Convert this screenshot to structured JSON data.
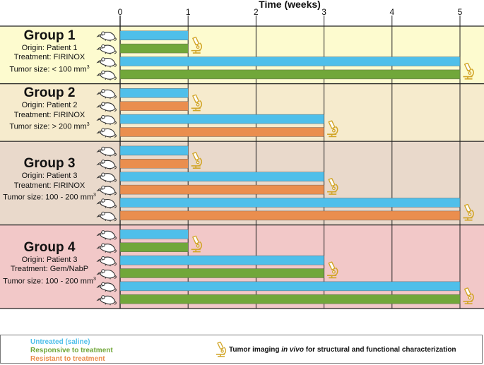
{
  "title": "Time (weeks)",
  "colors": {
    "untreated": "#4fbfea",
    "responsive": "#71a73a",
    "resistant": "#ea8e4e",
    "scope": "#d2a629"
  },
  "chart_data": {
    "type": "gantt",
    "xlabel": "Time (weeks)",
    "x_ticks": [
      "0",
      "1",
      "2",
      "3",
      "4",
      "5"
    ],
    "xlim": [
      0,
      5.4
    ],
    "groups": [
      {
        "title": "Group 1",
        "origin": "Origin: Patient 1",
        "treatment": "Treatment: FIRINOX",
        "tumor_size": "Tumor size: < 100 mm",
        "tumor_size_unit_exp": "3",
        "bg": "#fdfbcf",
        "bars": [
          {
            "status": "untreated",
            "end": 1
          },
          {
            "status": "responsive",
            "end": 1
          },
          {
            "status": "untreated",
            "end": 5
          },
          {
            "status": "responsive",
            "end": 5
          }
        ]
      },
      {
        "title": "Group 2",
        "origin": "Origin: Patient 2",
        "treatment": "Treatment: FIRINOX",
        "tumor_size": "Tumor size: > 200 mm",
        "tumor_size_unit_exp": "3",
        "bg": "#f6ebcd",
        "bars": [
          {
            "status": "untreated",
            "end": 1
          },
          {
            "status": "resistant",
            "end": 1
          },
          {
            "status": "untreated",
            "end": 3
          },
          {
            "status": "resistant",
            "end": 3
          }
        ]
      },
      {
        "title": "Group 3",
        "origin": "Origin: Patient 3",
        "treatment": "Treatment: FIRINOX",
        "tumor_size": "Tumor size: 100 - 200 mm",
        "tumor_size_unit_exp": "3",
        "bg": "#e9d9cb",
        "bars": [
          {
            "status": "untreated",
            "end": 1
          },
          {
            "status": "resistant",
            "end": 1
          },
          {
            "status": "untreated",
            "end": 3
          },
          {
            "status": "resistant",
            "end": 3
          },
          {
            "status": "untreated",
            "end": 5
          },
          {
            "status": "resistant",
            "end": 5
          }
        ]
      },
      {
        "title": "Group 4",
        "origin": "Origin: Patient 3",
        "treatment": "Treatment: Gem/NabP",
        "tumor_size": "Tumor size: 100 - 200 mm",
        "tumor_size_unit_exp": "3",
        "bg": "#f2c8c8",
        "bars": [
          {
            "status": "untreated",
            "end": 1
          },
          {
            "status": "responsive",
            "end": 1
          },
          {
            "status": "untreated",
            "end": 3
          },
          {
            "status": "responsive",
            "end": 3
          },
          {
            "status": "untreated",
            "end": 5
          },
          {
            "status": "responsive",
            "end": 5
          }
        ]
      }
    ]
  },
  "legend": {
    "untreated": "Untreated (saline)",
    "responsive": "Responsive to treatment",
    "resistant": "Resistant to treatment",
    "imaging_prefix": "Tumor imaging ",
    "imaging_italic": "in vivo",
    "imaging_suffix": " for structural and functional characterization"
  }
}
